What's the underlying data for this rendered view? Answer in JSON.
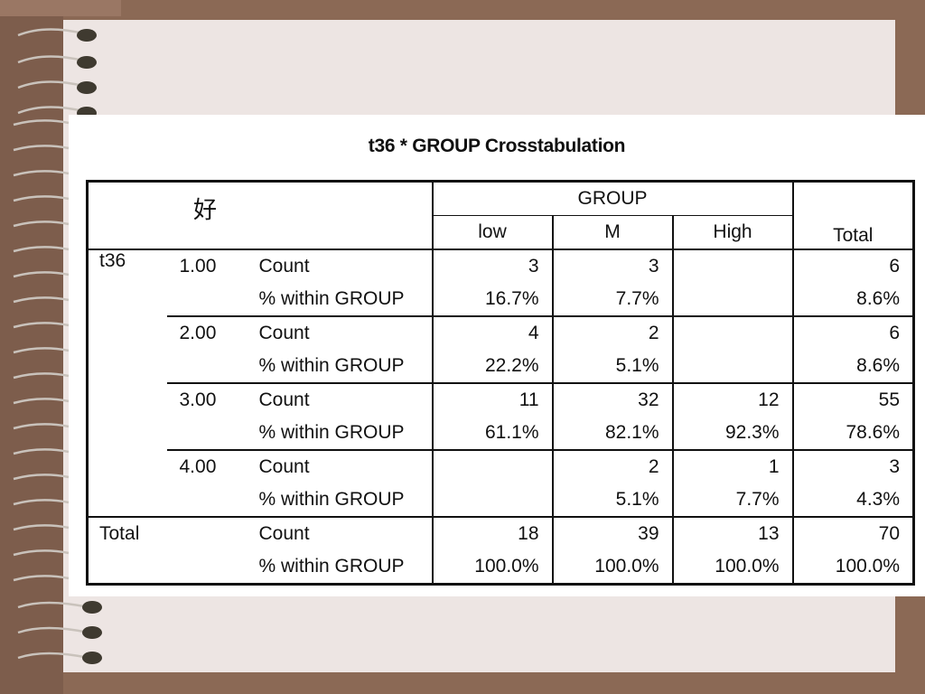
{
  "title": "t36 * GROUP Crosstabulation",
  "corner_label": "好",
  "group_header": "GROUP",
  "columns": [
    "low",
    "M",
    "High"
  ],
  "total_header": "Total",
  "row_var": "t36",
  "stat_labels": {
    "count": "Count",
    "pct": "% within GROUP"
  },
  "rows": [
    {
      "value": "1.00",
      "count": [
        "3",
        "3",
        "",
        "6"
      ],
      "pct": [
        "16.7%",
        "7.7%",
        "",
        "8.6%"
      ]
    },
    {
      "value": "2.00",
      "count": [
        "4",
        "2",
        "",
        "6"
      ],
      "pct": [
        "22.2%",
        "5.1%",
        "",
        "8.6%"
      ]
    },
    {
      "value": "3.00",
      "count": [
        "11",
        "32",
        "12",
        "55"
      ],
      "pct": [
        "61.1%",
        "82.1%",
        "92.3%",
        "78.6%"
      ]
    },
    {
      "value": "4.00",
      "count": [
        "",
        "2",
        "1",
        "3"
      ],
      "pct": [
        "",
        "5.1%",
        "7.7%",
        "4.3%"
      ]
    }
  ],
  "total_row": {
    "label": "Total",
    "count": [
      "18",
      "39",
      "13",
      "70"
    ],
    "pct": [
      "100.0%",
      "100.0%",
      "100.0%",
      "100.0%"
    ]
  },
  "colors": {
    "background": "#8b6955",
    "paper": "#ede5e3",
    "card": "#ffffff"
  },
  "decorations": {
    "binding": "spiral-rings"
  }
}
